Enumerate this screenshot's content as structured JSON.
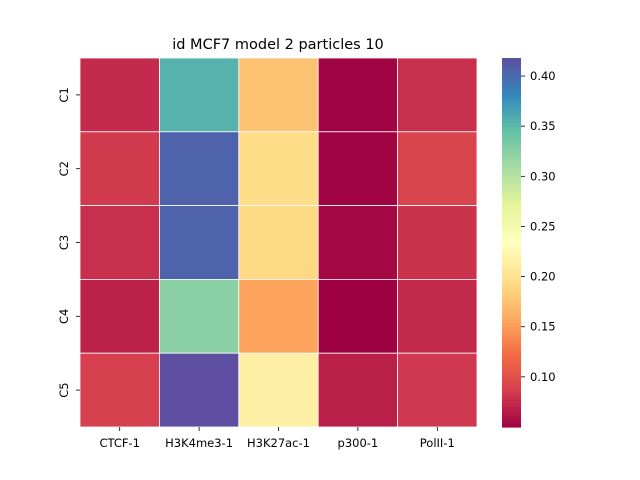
{
  "chart_data": {
    "type": "heatmap",
    "title": "id MCF7 model 2 particles 10",
    "xlabel": "",
    "ylabel": "",
    "columns": [
      "CTCF-1",
      "H3K4me3-1",
      "H3K27ac-1",
      "p300-1",
      "PolII-1"
    ],
    "rows": [
      "C1",
      "C2",
      "C3",
      "C4",
      "C5"
    ],
    "values": [
      [
        0.075,
        0.355,
        0.175,
        0.052,
        0.078
      ],
      [
        0.085,
        0.405,
        0.195,
        0.052,
        0.092
      ],
      [
        0.078,
        0.405,
        0.192,
        0.055,
        0.08
      ],
      [
        0.07,
        0.325,
        0.155,
        0.05,
        0.075
      ],
      [
        0.088,
        0.418,
        0.215,
        0.068,
        0.083
      ]
    ],
    "colormap": "Spectral",
    "colorbar": {
      "vmin": 0.05,
      "vmax": 0.418,
      "ticks": [
        0.1,
        0.15,
        0.2,
        0.25,
        0.3,
        0.35,
        0.4
      ],
      "tick_labels": [
        "0.10",
        "0.15",
        "0.20",
        "0.25",
        "0.30",
        "0.35",
        "0.40"
      ]
    },
    "grid": true,
    "cell_border_color": "#ffffff"
  }
}
